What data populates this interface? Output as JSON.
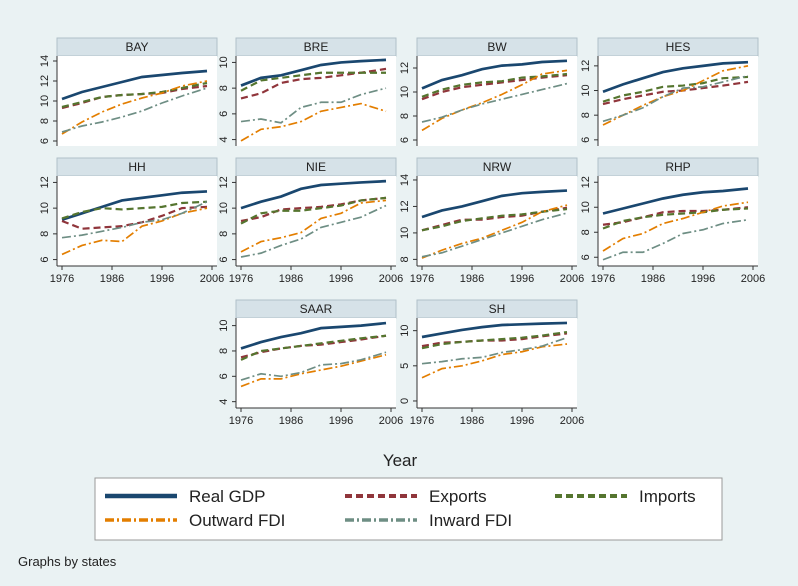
{
  "xlabel": "Year",
  "note": "Graphs by states",
  "legend": [
    {
      "name": "Real GDP",
      "color": "#1a476f",
      "dash": "none",
      "width": 3.5
    },
    {
      "name": "Exports",
      "color": "#90353b",
      "dash": "7,4",
      "width": 3
    },
    {
      "name": "Imports",
      "color": "#55752f",
      "dash": "7,4",
      "width": 3
    },
    {
      "name": "Outward FDI",
      "color": "#e37e00",
      "dash": "9,3,2,3",
      "width": 2.5
    },
    {
      "name": "Inward FDI",
      "color": "#6e8e84",
      "dash": "9,3,2,3",
      "width": 2.5
    }
  ],
  "chart_data": [
    {
      "type": "line",
      "title": "BAY",
      "x": [
        1976,
        1980,
        1984,
        1988,
        1992,
        1996,
        2000,
        2005
      ],
      "xlim": [
        1975,
        2007
      ],
      "ylim": [
        5.5,
        14.5
      ],
      "yticks": [
        6,
        8,
        10,
        12,
        14
      ],
      "series": [
        {
          "values": [
            10.2,
            10.9,
            11.4,
            11.9,
            12.4,
            12.6,
            12.8,
            13.0
          ]
        },
        {
          "values": [
            9.3,
            9.8,
            10.4,
            10.6,
            10.7,
            10.8,
            11.2,
            11.5
          ]
        },
        {
          "values": [
            9.4,
            9.9,
            10.4,
            10.6,
            10.7,
            10.9,
            11.3,
            11.8
          ]
        },
        {
          "values": [
            6.7,
            7.9,
            8.9,
            9.7,
            10.3,
            10.8,
            11.5,
            12.0
          ]
        },
        {
          "values": [
            6.9,
            7.5,
            7.9,
            8.4,
            9.0,
            9.8,
            10.5,
            11.3
          ]
        }
      ]
    },
    {
      "type": "line",
      "title": "BRE",
      "x": [
        1976,
        1980,
        1984,
        1988,
        1992,
        1996,
        2000,
        2005
      ],
      "xlim": [
        1975,
        2007
      ],
      "ylim": [
        3.5,
        10.5
      ],
      "yticks": [
        4,
        6,
        8,
        10
      ],
      "series": [
        {
          "values": [
            8.2,
            8.8,
            9.0,
            9.4,
            9.8,
            10.0,
            10.1,
            10.2
          ]
        },
        {
          "values": [
            7.2,
            7.6,
            8.4,
            8.7,
            8.8,
            9.0,
            9.2,
            9.5
          ]
        },
        {
          "values": [
            7.8,
            8.6,
            8.8,
            9.0,
            9.2,
            9.2,
            9.2,
            9.2
          ]
        },
        {
          "values": [
            3.9,
            4.8,
            5.0,
            5.4,
            6.2,
            6.5,
            6.8,
            6.2
          ]
        },
        {
          "values": [
            5.4,
            5.6,
            5.3,
            6.5,
            6.9,
            6.9,
            7.5,
            8.0
          ]
        }
      ]
    },
    {
      "type": "line",
      "title": "BW",
      "x": [
        1976,
        1980,
        1984,
        1988,
        1992,
        1996,
        2000,
        2005
      ],
      "xlim": [
        1975,
        2007
      ],
      "ylim": [
        5.5,
        13
      ],
      "yticks": [
        6,
        8,
        10,
        12
      ],
      "series": [
        {
          "values": [
            10.3,
            11.0,
            11.4,
            11.9,
            12.2,
            12.3,
            12.5,
            12.6
          ]
        },
        {
          "values": [
            9.4,
            10.0,
            10.4,
            10.6,
            10.8,
            11.0,
            11.2,
            11.4
          ]
        },
        {
          "values": [
            9.6,
            10.2,
            10.6,
            10.8,
            10.9,
            11.2,
            11.3,
            11.5
          ]
        },
        {
          "values": [
            6.8,
            7.8,
            8.5,
            9.1,
            9.8,
            10.6,
            11.5,
            11.8
          ]
        },
        {
          "values": [
            7.5,
            7.9,
            8.5,
            9.0,
            9.4,
            9.8,
            10.2,
            10.7
          ]
        }
      ]
    },
    {
      "type": "line",
      "title": "HES",
      "x": [
        1976,
        1980,
        1984,
        1988,
        1992,
        1996,
        2000,
        2005
      ],
      "xlim": [
        1975,
        2007
      ],
      "ylim": [
        5.5,
        12.8
      ],
      "yticks": [
        6,
        8,
        10,
        12
      ],
      "series": [
        {
          "values": [
            9.9,
            10.5,
            11.0,
            11.5,
            11.8,
            12.0,
            12.2,
            12.3
          ]
        },
        {
          "values": [
            8.9,
            9.3,
            9.6,
            9.9,
            10.0,
            10.2,
            10.4,
            10.7
          ]
        },
        {
          "values": [
            9.1,
            9.6,
            9.9,
            10.3,
            10.4,
            10.6,
            11.0,
            11.1
          ]
        },
        {
          "values": [
            7.2,
            8.0,
            8.8,
            9.5,
            10.0,
            10.8,
            11.6,
            12.0
          ]
        },
        {
          "values": [
            7.5,
            8.0,
            8.6,
            9.5,
            10.2,
            10.3,
            10.7,
            11.2
          ]
        }
      ]
    },
    {
      "type": "line",
      "title": "HH",
      "x": [
        1976,
        1980,
        1984,
        1988,
        1992,
        1996,
        2000,
        2005
      ],
      "xlim": [
        1975,
        2007
      ],
      "xticks": [
        1976,
        1986,
        1996,
        2006
      ],
      "ylim": [
        5.5,
        12.5
      ],
      "yticks": [
        6,
        8,
        10,
        12
      ],
      "series": [
        {
          "values": [
            9.1,
            9.6,
            10.1,
            10.6,
            10.8,
            11.0,
            11.2,
            11.3
          ]
        },
        {
          "values": [
            9.0,
            8.4,
            8.5,
            8.6,
            8.9,
            9.4,
            10.0,
            10.1
          ]
        },
        {
          "values": [
            9.2,
            9.7,
            10.0,
            9.9,
            10.0,
            10.1,
            10.4,
            10.5
          ]
        },
        {
          "values": [
            6.4,
            7.1,
            7.5,
            7.4,
            8.6,
            9.0,
            9.6,
            10.0
          ]
        },
        {
          "values": [
            7.7,
            7.9,
            8.2,
            8.5,
            8.9,
            9.1,
            9.6,
            10.5
          ]
        }
      ]
    },
    {
      "type": "line",
      "title": "NIE",
      "x": [
        1976,
        1980,
        1984,
        1988,
        1992,
        1996,
        2000,
        2005
      ],
      "xlim": [
        1975,
        2007
      ],
      "xticks": [
        1976,
        1986,
        1996,
        2006
      ],
      "ylim": [
        5.5,
        12.5
      ],
      "yticks": [
        6,
        8,
        10,
        12
      ],
      "series": [
        {
          "values": [
            10.0,
            10.5,
            10.9,
            11.5,
            11.8,
            11.9,
            12.0,
            12.1
          ]
        },
        {
          "values": [
            9.0,
            9.3,
            9.9,
            10.0,
            10.1,
            10.3,
            10.6,
            10.8
          ]
        },
        {
          "values": [
            8.8,
            9.6,
            9.8,
            9.8,
            10.0,
            10.2,
            10.6,
            10.8
          ]
        },
        {
          "values": [
            6.6,
            7.4,
            7.7,
            8.1,
            9.2,
            9.6,
            10.4,
            10.6
          ]
        },
        {
          "values": [
            6.2,
            6.5,
            7.1,
            7.6,
            8.5,
            8.9,
            9.3,
            10.2
          ]
        }
      ]
    },
    {
      "type": "line",
      "title": "NRW",
      "x": [
        1976,
        1980,
        1984,
        1988,
        1992,
        1996,
        2000,
        2005
      ],
      "xlim": [
        1975,
        2007
      ],
      "xticks": [
        1976,
        1986,
        1996,
        2006
      ],
      "ylim": [
        7.5,
        14.3
      ],
      "yticks": [
        8,
        10,
        12,
        14
      ],
      "series": [
        {
          "values": [
            11.2,
            11.7,
            12.0,
            12.4,
            12.8,
            13.0,
            13.1,
            13.2
          ]
        },
        {
          "values": [
            10.2,
            10.6,
            11.0,
            11.0,
            11.2,
            11.3,
            11.6,
            11.9
          ]
        },
        {
          "values": [
            10.2,
            10.5,
            10.9,
            11.1,
            11.3,
            11.4,
            11.6,
            11.8
          ]
        },
        {
          "values": [
            8.1,
            8.7,
            9.2,
            9.6,
            10.2,
            10.8,
            11.6,
            12.1
          ]
        },
        {
          "values": [
            8.2,
            8.5,
            9.0,
            9.5,
            10.0,
            10.5,
            11.0,
            11.5
          ]
        }
      ]
    },
    {
      "type": "line",
      "title": "RHP",
      "x": [
        1976,
        1980,
        1984,
        1988,
        1992,
        1996,
        2000,
        2005
      ],
      "xlim": [
        1975,
        2007
      ],
      "xticks": [
        1976,
        1986,
        1996,
        2006
      ],
      "ylim": [
        5.3,
        12.5
      ],
      "yticks": [
        6,
        8,
        10,
        12
      ],
      "series": [
        {
          "values": [
            9.5,
            9.9,
            10.3,
            10.7,
            11.0,
            11.2,
            11.3,
            11.5
          ]
        },
        {
          "values": [
            8.6,
            8.8,
            9.2,
            9.6,
            9.7,
            9.7,
            9.8,
            10.0
          ]
        },
        {
          "values": [
            8.3,
            8.9,
            9.2,
            9.4,
            9.5,
            9.6,
            9.8,
            9.9
          ]
        },
        {
          "values": [
            6.5,
            7.5,
            7.9,
            8.7,
            9.1,
            9.6,
            10.1,
            10.4
          ]
        },
        {
          "values": [
            5.8,
            6.4,
            6.4,
            7.1,
            7.9,
            8.2,
            8.7,
            9.0
          ]
        }
      ]
    },
    {
      "type": "line",
      "title": "SAAR",
      "x": [
        1976,
        1980,
        1984,
        1988,
        1992,
        1996,
        2000,
        2005
      ],
      "xlim": [
        1975,
        2007
      ],
      "xticks": [
        1976,
        1986,
        1996,
        2006
      ],
      "ylim": [
        3.5,
        10.6
      ],
      "yticks": [
        4,
        6,
        8,
        10
      ],
      "series": [
        {
          "values": [
            8.2,
            8.7,
            9.1,
            9.4,
            9.8,
            9.9,
            10.0,
            10.2
          ]
        },
        {
          "values": [
            7.5,
            7.9,
            8.2,
            8.4,
            8.5,
            8.7,
            8.9,
            9.2
          ]
        },
        {
          "values": [
            7.3,
            8.0,
            8.2,
            8.4,
            8.6,
            8.8,
            9.0,
            9.2
          ]
        },
        {
          "values": [
            5.2,
            5.8,
            5.8,
            6.2,
            6.5,
            6.8,
            7.2,
            7.7
          ]
        },
        {
          "values": [
            5.7,
            6.2,
            6.0,
            6.3,
            6.9,
            7.0,
            7.3,
            7.9
          ]
        }
      ]
    },
    {
      "type": "line",
      "title": "SH",
      "x": [
        1976,
        1980,
        1984,
        1988,
        1992,
        1996,
        2000,
        2005
      ],
      "xlim": [
        1975,
        2007
      ],
      "xticks": [
        1976,
        1986,
        1996,
        2006
      ],
      "ylim": [
        -1,
        11.8
      ],
      "yticks": [
        0,
        5,
        10
      ],
      "series": [
        {
          "values": [
            9.1,
            9.6,
            10.1,
            10.5,
            10.8,
            10.9,
            11.0,
            11.1
          ]
        },
        {
          "values": [
            7.8,
            8.3,
            8.4,
            8.6,
            8.6,
            8.8,
            9.2,
            9.6
          ]
        },
        {
          "values": [
            7.5,
            8.1,
            8.4,
            8.6,
            8.8,
            9.0,
            9.3,
            9.8
          ]
        },
        {
          "values": [
            3.3,
            4.6,
            5.0,
            5.7,
            6.6,
            7.0,
            7.7,
            8.1
          ]
        },
        {
          "values": [
            5.3,
            5.6,
            6.0,
            6.2,
            6.9,
            7.3,
            7.8,
            9.0
          ]
        }
      ]
    }
  ]
}
